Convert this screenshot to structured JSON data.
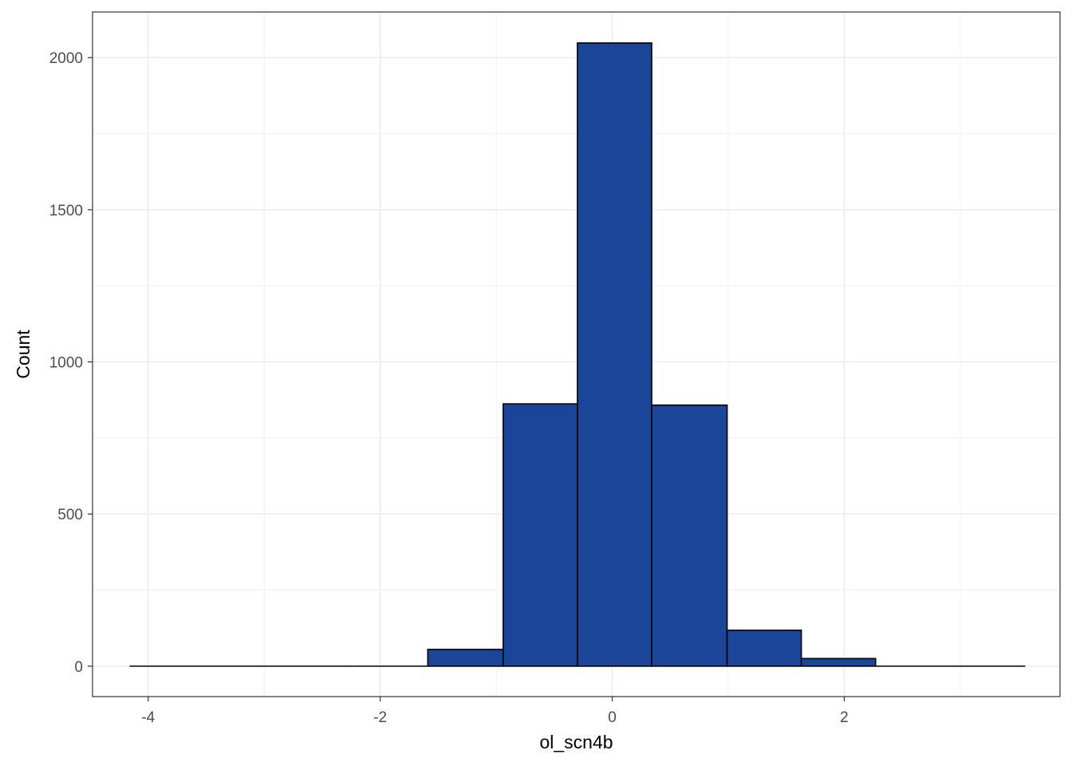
{
  "chart_data": {
    "type": "bar",
    "subtype": "histogram",
    "title": "",
    "xlabel": "ol_scn4b",
    "ylabel": "Count",
    "xlim": [
      -4.48,
      3.86
    ],
    "ylim": [
      -100,
      2150
    ],
    "xticks": [
      -4,
      -2,
      0,
      2
    ],
    "xtick_labels": [
      "-4",
      "-2",
      "0",
      "2"
    ],
    "yticks": [
      0,
      500,
      1000,
      1500,
      2000
    ],
    "ytick_labels": [
      "0",
      "500",
      "1000",
      "1500",
      "2000"
    ],
    "bins": [
      {
        "x0": -4.16,
        "x1": -3.52,
        "count": 0
      },
      {
        "x0": -3.52,
        "x1": -2.87,
        "count": 0
      },
      {
        "x0": -2.87,
        "x1": -2.23,
        "count": 0
      },
      {
        "x0": -2.23,
        "x1": -1.59,
        "count": 0
      },
      {
        "x0": -1.59,
        "x1": -0.94,
        "count": 55
      },
      {
        "x0": -0.94,
        "x1": -0.3,
        "count": 862
      },
      {
        "x0": -0.3,
        "x1": 0.34,
        "count": 2048
      },
      {
        "x0": 0.34,
        "x1": 0.99,
        "count": 858
      },
      {
        "x0": 0.99,
        "x1": 1.63,
        "count": 118
      },
      {
        "x0": 1.63,
        "x1": 2.27,
        "count": 25
      },
      {
        "x0": 2.27,
        "x1": 2.91,
        "count": 0
      },
      {
        "x0": 2.91,
        "x1": 3.56,
        "count": 0
      }
    ],
    "fill_color": "#1a4599",
    "edge_color": "#000000",
    "grid": true,
    "theme": "bw",
    "legend": "none"
  }
}
